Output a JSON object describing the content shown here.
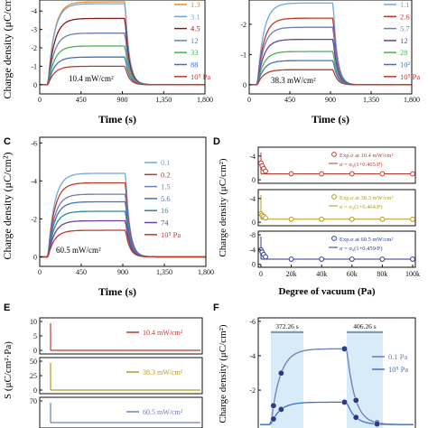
{
  "colors": {
    "red": "#c0392b",
    "orange": "#ef8a17",
    "lightblue": "#6fa8dc",
    "darkred": "#8b1a1a",
    "teal": "#2e8b8b",
    "olive": "#9a8a00",
    "purple": "#6a3fa0",
    "green": "#4caf50",
    "navy": "#2d3a8c",
    "blue": "#3f72c6",
    "gold": "#b59a1a",
    "slate": "#6b7db8",
    "highlight": "#c6e2f5"
  },
  "charts": [
    {
      "panel": "",
      "type": "line",
      "xlabel": "Time (s)",
      "ylabel": "Charge density (μC/cm²)",
      "xticks": [
        "0",
        "450",
        "900",
        "1,350",
        "1,800"
      ],
      "yticks": [
        "-4",
        "-3",
        "-2",
        "-1",
        "0"
      ],
      "xlim": [
        0,
        1800
      ],
      "ylim": [
        0.5,
        -4.6
      ],
      "annotation": "10.4 mW/cm²",
      "legend": [
        "1.3",
        "3.1",
        "4.5",
        "12",
        "33",
        "88",
        "10⁵ Pa"
      ],
      "series": [
        {
          "name": "1.3",
          "plateau": -4.5,
          "color": "orange"
        },
        {
          "name": "3.1",
          "plateau": -4.4,
          "color": "lightblue"
        },
        {
          "name": "4.5",
          "plateau": -3.6,
          "color": "darkred"
        },
        {
          "name": "12",
          "plateau": -2.8,
          "color": "slate"
        },
        {
          "name": "33",
          "plateau": -2.1,
          "color": "green"
        },
        {
          "name": "88",
          "plateau": -1.5,
          "color": "blue"
        },
        {
          "name": "10⁵ Pa",
          "plateau": -1.0,
          "color": "red"
        }
      ],
      "on": 90,
      "off": 930
    },
    {
      "panel": "",
      "type": "line",
      "xlabel": "Time (s)",
      "ylabel": "",
      "xticks": [
        "0",
        "450",
        "900",
        "1,350",
        "1,800"
      ],
      "yticks": [
        "-2",
        "-1",
        "0"
      ],
      "xlim": [
        0,
        1800
      ],
      "ylim": [
        0.3,
        -2.8
      ],
      "annotation": "38.3 mW/cm²",
      "legend": [
        "1.1",
        "2.6",
        "5.7",
        "12",
        "28",
        "10²",
        "10⁵ Pa"
      ],
      "series": [
        {
          "name": "1.1",
          "plateau": -2.7,
          "color": "lightblue"
        },
        {
          "name": "2.6",
          "plateau": -2.2,
          "color": "red"
        },
        {
          "name": "5.7",
          "plateau": -1.9,
          "color": "slate"
        },
        {
          "name": "12",
          "plateau": -1.5,
          "color": "purple"
        },
        {
          "name": "28",
          "plateau": -1.1,
          "color": "green"
        },
        {
          "name": "10²",
          "plateau": -0.8,
          "color": "blue"
        },
        {
          "name": "10⁵ Pa",
          "plateau": -0.5,
          "color": "red"
        }
      ],
      "on": 90,
      "off": 930
    },
    {
      "panel": "C",
      "type": "line",
      "xlabel": "Time (s)",
      "ylabel": "Charge density (μC/cm²)",
      "xticks": [
        "0",
        "450",
        "900",
        "1,350",
        "1,800"
      ],
      "yticks": [
        "-6",
        "-4",
        "-2",
        "0"
      ],
      "xlim": [
        0,
        1800
      ],
      "ylim": [
        0.5,
        -6.3
      ],
      "annotation": "60.5 mW/cm²",
      "legend": [
        "0.1",
        "0.2",
        "1.5",
        "5.6",
        "16",
        "74",
        "10⁵ Pa"
      ],
      "series": [
        {
          "name": "0.1",
          "plateau": -4.4,
          "color": "lightblue"
        },
        {
          "name": "0.2",
          "plateau": -3.9,
          "color": "red"
        },
        {
          "name": "1.5",
          "plateau": -3.3,
          "color": "slate"
        },
        {
          "name": "5.6",
          "plateau": -2.9,
          "color": "blue"
        },
        {
          "name": "16",
          "plateau": -2.4,
          "color": "teal"
        },
        {
          "name": "74",
          "plateau": -1.9,
          "color": "purple"
        },
        {
          "name": "10⁵ Pa",
          "plateau": -1.4,
          "color": "red"
        }
      ],
      "on": 90,
      "off": 930
    },
    {
      "panel": "D",
      "type": "scatter",
      "xlabel": "Degree of vacuum (Pa)",
      "ylabel": "Charge density (μC/cm²)",
      "xticks": [
        "0",
        "20k",
        "40k",
        "60k",
        "80k",
        "100k"
      ],
      "xlim": [
        0,
        100000
      ],
      "subplots": [
        {
          "yticks": [
            "-4",
            "0"
          ],
          "ylim": [
            0.6,
            -5.5
          ],
          "color": "red",
          "legend_points": "Exp.σ  at 10.4 mW/cm²",
          "legend_fit": "σ = σ₀(1+0.465/P)",
          "sigma0": -1.0,
          "k": 0.465
        },
        {
          "yticks": [
            "-4",
            "0"
          ],
          "ylim": [
            0.6,
            -5.5
          ],
          "color": "gold",
          "legend_points": "Exp.σ  at 38.3 mW/cm²",
          "legend_fit": "σ = σ₀(1+0.464/P)",
          "sigma0": -0.5,
          "k": 0.464
        },
        {
          "yticks": [
            "-8",
            "-4",
            "0"
          ],
          "ylim": [
            0.8,
            -9
          ],
          "color": "navy",
          "legend_points": "Exp.σ  at 60.5 mW/cm²",
          "legend_fit": "σ = σ₀(1+0.459/P)",
          "sigma0": -1.4,
          "k": 0.459
        }
      ],
      "points_x": [
        0.1,
        1.5,
        5.6,
        16,
        74,
        100000
      ]
    },
    {
      "panel": "E",
      "type": "line",
      "ylabel": "S (μC/cm²·Pa)",
      "subplots": [
        {
          "yticks": [
            "10",
            "5",
            "0"
          ],
          "legend": "10.4 mW/cm²",
          "color": "red"
        },
        {
          "yticks": [
            "50",
            "25",
            "0"
          ],
          "legend": "38.3 mW/cm²",
          "color": "gold"
        },
        {
          "yticks": [
            "70"
          ],
          "legend": "60.5 mW/cm²",
          "color": "slate"
        }
      ]
    },
    {
      "panel": "F",
      "type": "line",
      "ylabel": "Charge density (μC/cm²)",
      "yticks": [
        "-6",
        "-4",
        "-2"
      ],
      "ylim": [
        0.2,
        -6.2
      ],
      "annotations": [
        "372.26 s",
        "406.26 s"
      ],
      "legend": [
        "0.1 Pa",
        "10⁵ Pa"
      ],
      "series": [
        {
          "name": "0.1 Pa",
          "plateau": -4.4,
          "color": "slate"
        },
        {
          "name": "10⁵ Pa",
          "plateau": -1.3,
          "color": "blue"
        }
      ]
    }
  ]
}
